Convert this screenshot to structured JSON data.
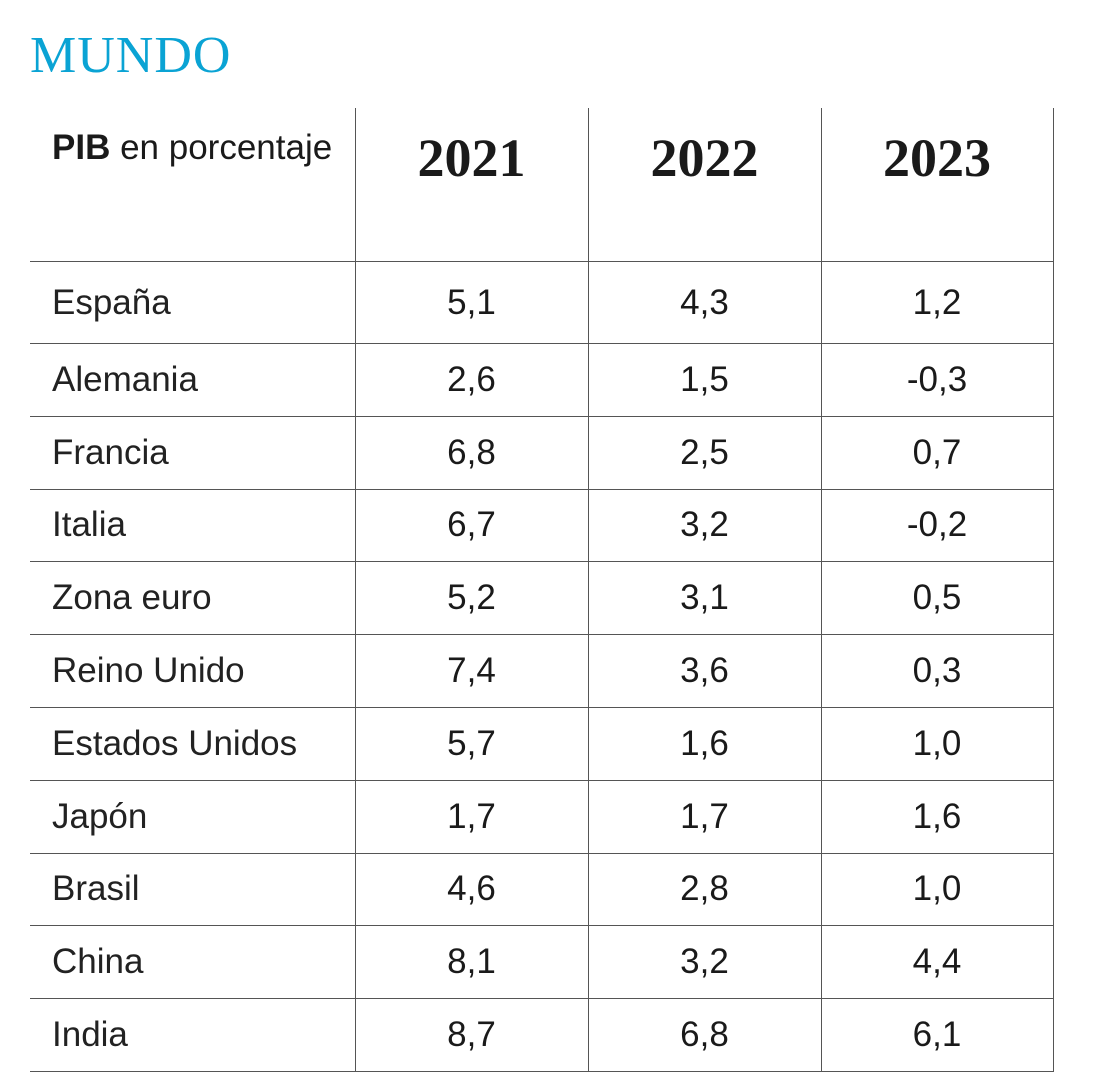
{
  "title": "MUNDO",
  "colors": {
    "title": "#0aa3d4",
    "text": "#1a1a1a",
    "rules": "#555555"
  },
  "chart_data": {
    "type": "table",
    "title": "MUNDO",
    "header": {
      "label_bold": "PIB",
      "label_rest": " en porcentaje",
      "years": [
        "2021",
        "2022",
        "2023"
      ]
    },
    "rows": [
      {
        "country": "España",
        "values": [
          "5,1",
          "4,3",
          "1,2"
        ]
      },
      {
        "country": "Alemania",
        "values": [
          "2,6",
          "1,5",
          "-0,3"
        ]
      },
      {
        "country": "Francia",
        "values": [
          "6,8",
          "2,5",
          "0,7"
        ]
      },
      {
        "country": "Italia",
        "values": [
          "6,7",
          "3,2",
          "-0,2"
        ]
      },
      {
        "country": "Zona euro",
        "values": [
          "5,2",
          "3,1",
          "0,5"
        ]
      },
      {
        "country": "Reino Unido",
        "values": [
          "7,4",
          "3,6",
          "0,3"
        ]
      },
      {
        "country": "Estados Unidos",
        "values": [
          "5,7",
          "1,6",
          "1,0"
        ]
      },
      {
        "country": "Japón",
        "values": [
          "1,7",
          "1,7",
          "1,6"
        ]
      },
      {
        "country": "Brasil",
        "values": [
          "4,6",
          "2,8",
          "1,0"
        ]
      },
      {
        "country": "China",
        "values": [
          "8,1",
          "3,2",
          "4,4"
        ]
      },
      {
        "country": "India",
        "values": [
          "8,7",
          "6,8",
          "6,1"
        ]
      }
    ]
  }
}
